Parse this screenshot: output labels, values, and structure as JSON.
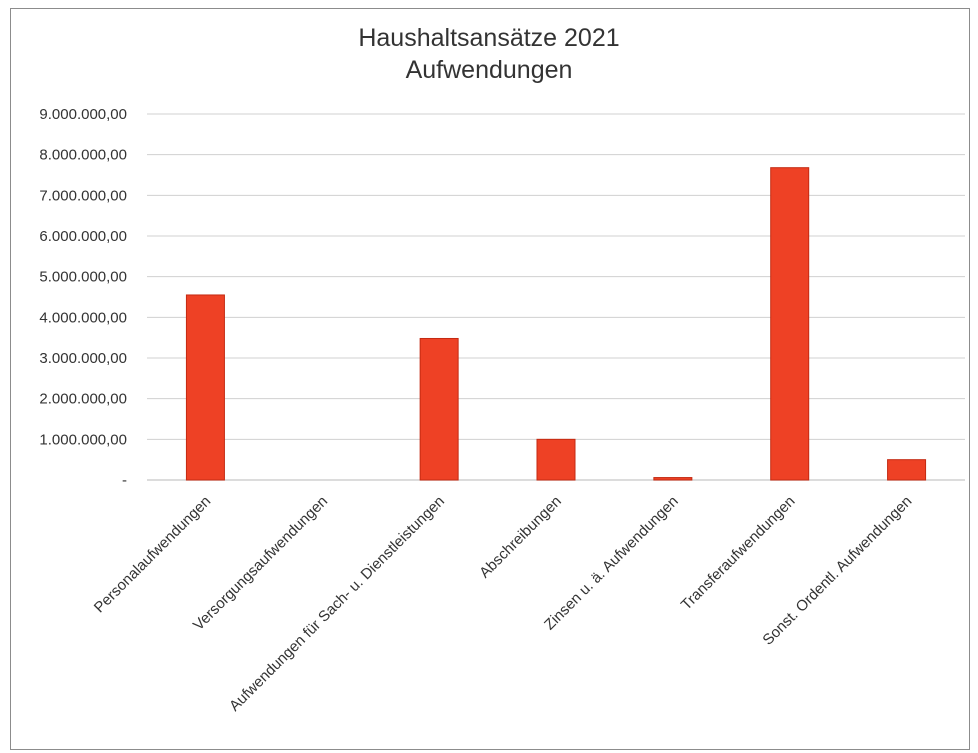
{
  "chart_data": {
    "type": "bar",
    "title": "Haushaltsansätze 2021",
    "subtitle": "Aufwendungen",
    "xlabel": "",
    "ylabel": "",
    "categories": [
      "Personalaufwendungen",
      "Versorgungsaufwendungen",
      "Aufwendungen für Sach- u. Dienstleistungen",
      "Abschreibungen",
      "Zinsen u. ä. Aufwendungen",
      "Transferaufwendungen",
      "Sonst. Ordentl. Aufwendungen"
    ],
    "values": [
      4550000,
      0,
      3480000,
      1000000,
      60000,
      7680000,
      500000
    ],
    "ylim": [
      0,
      9000000
    ],
    "y_ticks": [
      0,
      1000000,
      2000000,
      3000000,
      4000000,
      5000000,
      6000000,
      7000000,
      8000000,
      9000000
    ],
    "y_tick_labels": [
      "-",
      "1.000.000,00",
      "2.000.000,00",
      "3.000.000,00",
      "4.000.000,00",
      "5.000.000,00",
      "6.000.000,00",
      "7.000.000,00",
      "8.000.000,00",
      "9.000.000,00"
    ],
    "grid": true,
    "legend": "none",
    "colors": {
      "bar": "#ee4125",
      "bar_edge": "#c42a12",
      "grid": "#d0d0d0",
      "text": "#333333"
    }
  }
}
